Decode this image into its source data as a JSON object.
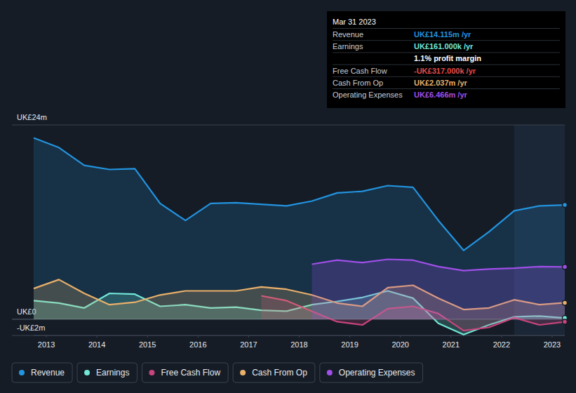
{
  "chart_data": {
    "type": "line",
    "x": [
      2012.75,
      2013.25,
      2013.75,
      2014.25,
      2014.75,
      2015.25,
      2015.75,
      2016.25,
      2016.75,
      2017.25,
      2017.75,
      2018.25,
      2018.75,
      2019.25,
      2019.75,
      2020.25,
      2020.75,
      2021.25,
      2021.75,
      2022.25,
      2022.75,
      2023.25
    ],
    "xlim": [
      2012.75,
      2023.25
    ],
    "xticks": [
      2013,
      2014,
      2015,
      2016,
      2017,
      2018,
      2019,
      2020,
      2021,
      2022,
      2023
    ],
    "ylim": [
      -2,
      24
    ],
    "yticks": [
      {
        "value": -2,
        "label": "-UK£2m"
      },
      {
        "value": 0,
        "label": "UK£0"
      },
      {
        "value": 24,
        "label": "UK£24m"
      }
    ],
    "grid": true,
    "legend": "bottom",
    "series": [
      {
        "name": "Revenue",
        "color": "#2394df",
        "values": [
          22.4,
          21.2,
          19.0,
          18.5,
          18.6,
          14.3,
          12.2,
          14.3,
          14.4,
          14.2,
          14.0,
          14.6,
          15.6,
          15.8,
          16.5,
          16.3,
          12.2,
          8.5,
          10.8,
          13.4,
          14.0,
          14.115
        ]
      },
      {
        "name": "Earnings",
        "color": "#71e7d6",
        "values": [
          2.3,
          2.0,
          1.4,
          3.2,
          3.1,
          1.6,
          1.8,
          1.4,
          1.5,
          1.1,
          1.0,
          1.8,
          2.2,
          2.7,
          3.5,
          2.6,
          -0.5,
          -1.9,
          -0.7,
          0.3,
          0.4,
          0.161
        ]
      },
      {
        "name": "Free Cash Flow",
        "color": "#c8447c",
        "values": [
          null,
          null,
          null,
          null,
          null,
          null,
          null,
          null,
          null,
          2.9,
          2.3,
          1.0,
          -0.3,
          -0.7,
          1.3,
          1.6,
          0.7,
          -1.4,
          -1.0,
          0.2,
          -0.7,
          -0.317
        ]
      },
      {
        "name": "Cash From Op",
        "color": "#e9b06a",
        "values": [
          3.8,
          4.9,
          3.2,
          1.8,
          2.1,
          3.0,
          3.5,
          3.5,
          3.5,
          4.0,
          3.7,
          3.0,
          2.0,
          1.6,
          3.9,
          4.2,
          2.6,
          1.2,
          1.4,
          2.4,
          1.8,
          2.037
        ]
      },
      {
        "name": "Operating Expenses",
        "color": "#a04fe8",
        "values": [
          null,
          null,
          null,
          null,
          null,
          null,
          null,
          null,
          null,
          null,
          null,
          6.8,
          7.3,
          7.0,
          7.4,
          7.3,
          6.5,
          6.0,
          6.2,
          6.3,
          6.5,
          6.466
        ]
      }
    ],
    "annotations": {
      "title": "Mar 31 2023",
      "rows": [
        {
          "name": "Revenue",
          "text": "UK£14.115m /yr",
          "color": "#2394df"
        },
        {
          "name": "Earnings",
          "text": "UK£161.000k /yr",
          "color": "#71e7d6"
        },
        {
          "text": "1.1% profit margin",
          "color": "#ffffff"
        },
        {
          "name": "Free Cash Flow",
          "text": "-UK£317.000k /yr",
          "color": "#e64b4b"
        },
        {
          "name": "Cash From Op",
          "text": "UK£2.037m /yr",
          "color": "#e9b06a"
        },
        {
          "name": "Operating Expenses",
          "text": "UK£6.466m /yr",
          "color": "#a04fe8"
        }
      ]
    }
  }
}
